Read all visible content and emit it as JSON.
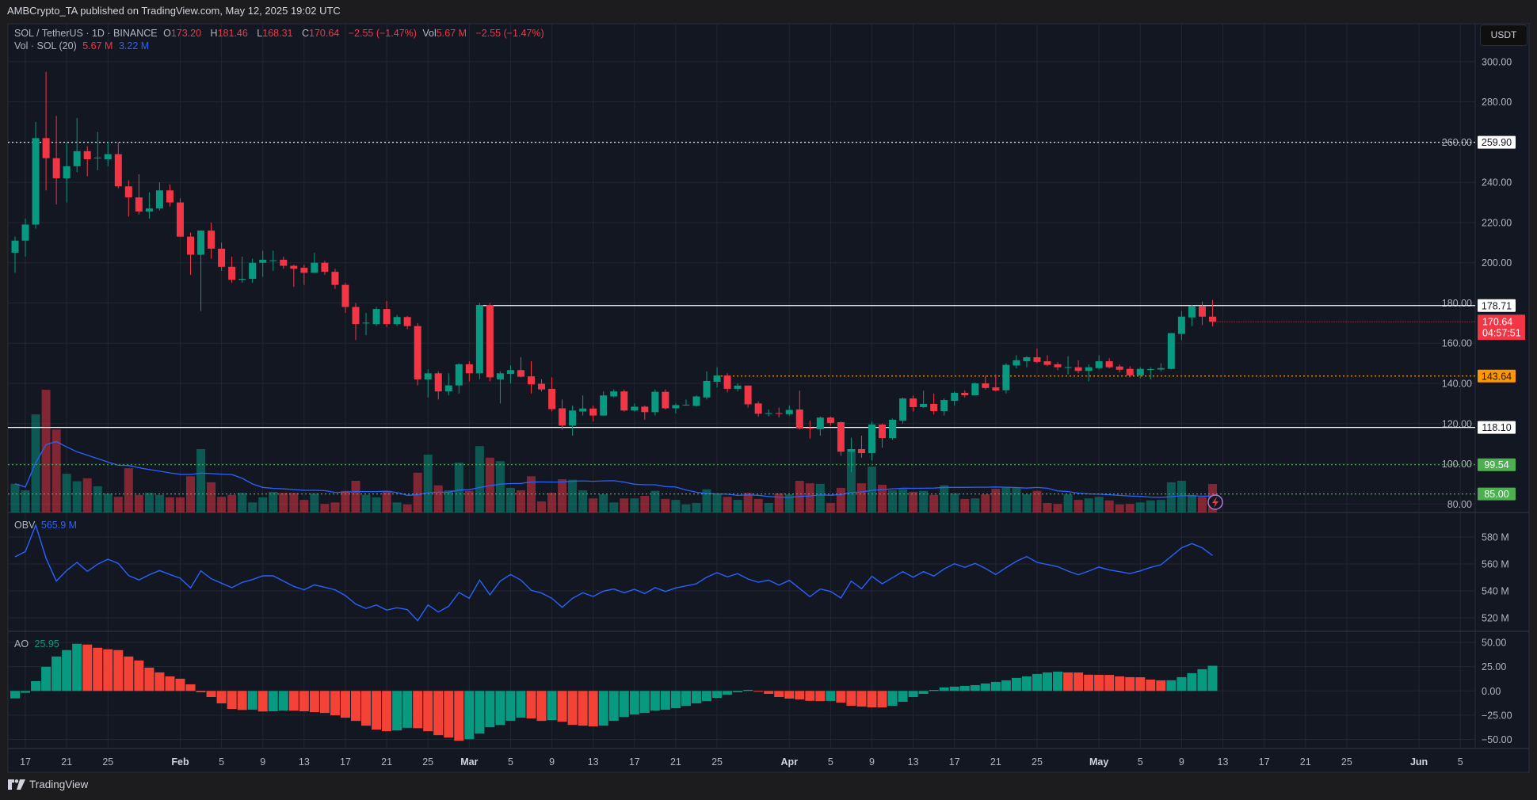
{
  "header": {
    "published": "AMBCrypto_TA published on TradingView.com, May 12, 2025 19:02 UTC"
  },
  "legend": {
    "symbol": "SOL / TetherUS · 1D · BINANCE",
    "o_label": "O",
    "o": "173.20",
    "h_label": "H",
    "h": "181.46",
    "l_label": "L",
    "l": "168.31",
    "c_label": "C",
    "c": "170.64",
    "change": "−2.55 (−1.47%)",
    "vol_label": "Vol",
    "vol": "5.67 M",
    "vol_change": "−2.55 (−1.47%)",
    "vol_indicator": "Vol · SOL (20)",
    "vol_value": "5.67 M",
    "vol_ma_value": "3.22 M"
  },
  "obv_legend": {
    "label": "OBV",
    "value": "565.9 M"
  },
  "ao_legend": {
    "label": "AO",
    "value": "25.95"
  },
  "currency_button": "USDT",
  "footer": {
    "brand": "TradingView"
  },
  "colors": {
    "up": "#089981",
    "down": "#f23645",
    "line": "#2962ff",
    "background": "#131722",
    "grid": "#222631",
    "level_orange": "#ff9800",
    "level_green": "#4caf50"
  },
  "icons": {
    "alert": "lightning-icon",
    "logo": "tradingview-logo"
  },
  "chart_data": {
    "type": "candlestick",
    "symbol": "SOL / TetherUS",
    "interval": "1D",
    "price_axis": {
      "ticks": [
        "300.00",
        "280.00",
        "260.00",
        "240.00",
        "220.00",
        "200.00",
        "180.00",
        "160.00",
        "140.00",
        "120.00",
        "100.00",
        "80.00"
      ],
      "range": [
        80,
        300
      ]
    },
    "obv_axis": {
      "ticks": [
        "580 M",
        "560 M",
        "540 M",
        "520 M"
      ],
      "range": [
        520,
        580
      ]
    },
    "ao_axis": {
      "ticks": [
        "50.00",
        "25.00",
        "0.00",
        "−25.00",
        "−50.00"
      ],
      "range": [
        -50,
        50
      ]
    },
    "x_ticks": [
      {
        "label": "17",
        "date": "2025-01-17"
      },
      {
        "label": "21",
        "date": "2025-01-21"
      },
      {
        "label": "25",
        "date": "2025-01-25"
      },
      {
        "label": "Feb",
        "date": "2025-02-01",
        "major": true
      },
      {
        "label": "5",
        "date": "2025-02-05"
      },
      {
        "label": "9",
        "date": "2025-02-09"
      },
      {
        "label": "13",
        "date": "2025-02-13"
      },
      {
        "label": "17",
        "date": "2025-02-17"
      },
      {
        "label": "21",
        "date": "2025-02-21"
      },
      {
        "label": "25",
        "date": "2025-02-25"
      },
      {
        "label": "Mar",
        "date": "2025-03-01",
        "major": true
      },
      {
        "label": "5",
        "date": "2025-03-05"
      },
      {
        "label": "9",
        "date": "2025-03-09"
      },
      {
        "label": "13",
        "date": "2025-03-13"
      },
      {
        "label": "17",
        "date": "2025-03-17"
      },
      {
        "label": "21",
        "date": "2025-03-21"
      },
      {
        "label": "25",
        "date": "2025-03-25"
      },
      {
        "label": "Apr",
        "date": "2025-04-01",
        "major": true
      },
      {
        "label": "5",
        "date": "2025-04-05"
      },
      {
        "label": "9",
        "date": "2025-04-09"
      },
      {
        "label": "13",
        "date": "2025-04-13"
      },
      {
        "label": "17",
        "date": "2025-04-17"
      },
      {
        "label": "21",
        "date": "2025-04-21"
      },
      {
        "label": "25",
        "date": "2025-04-25"
      },
      {
        "label": "May",
        "date": "2025-05-01",
        "major": true
      },
      {
        "label": "5",
        "date": "2025-05-05"
      },
      {
        "label": "9",
        "date": "2025-05-09"
      },
      {
        "label": "13",
        "date": "2025-05-13"
      },
      {
        "label": "17",
        "date": "2025-05-17"
      },
      {
        "label": "21",
        "date": "2025-05-21"
      },
      {
        "label": "25",
        "date": "2025-05-25"
      },
      {
        "label": "Jun",
        "date": "2025-06-01",
        "major": true
      },
      {
        "label": "5",
        "date": "2025-06-05"
      }
    ],
    "levels": [
      {
        "value": 259.9,
        "label": "259.90",
        "style": "dotted",
        "color": "#ffffff",
        "label_bg": "#ffffff",
        "label_color": "#131722"
      },
      {
        "value": 178.71,
        "label": "178.71",
        "style": "solid",
        "color": "#ffffff",
        "label_bg": "#ffffff",
        "label_color": "#131722",
        "from_date": "2025-03-02"
      },
      {
        "value": 143.64,
        "label": "143.64",
        "style": "dotted",
        "color": "#ff9800",
        "label_bg": "#ff9800",
        "label_color": "#131722",
        "from_date": "2025-03-25"
      },
      {
        "value": 118.1,
        "label": "118.10",
        "style": "solid",
        "color": "#ffffff",
        "label_bg": "#ffffff",
        "label_color": "#131722"
      },
      {
        "value": 99.54,
        "label": "99.54",
        "style": "dotted",
        "color": "#4caf50",
        "label_bg": "#4caf50",
        "label_color": "#ffffff"
      },
      {
        "value": 85.0,
        "label": "85.00",
        "style": "dotted",
        "color": "#4caf50",
        "label_bg": "#4caf50",
        "label_color": "#ffffff"
      }
    ],
    "last_price": {
      "value": 170.64,
      "label": "170.64",
      "countdown": "04:57:51"
    },
    "dates": [
      "2025-01-16",
      "2025-01-17",
      "2025-01-18",
      "2025-01-19",
      "2025-01-20",
      "2025-01-21",
      "2025-01-22",
      "2025-01-23",
      "2025-01-24",
      "2025-01-25",
      "2025-01-26",
      "2025-01-27",
      "2025-01-28",
      "2025-01-29",
      "2025-01-30",
      "2025-01-31",
      "2025-02-01",
      "2025-02-02",
      "2025-02-03",
      "2025-02-04",
      "2025-02-05",
      "2025-02-06",
      "2025-02-07",
      "2025-02-08",
      "2025-02-09",
      "2025-02-10",
      "2025-02-11",
      "2025-02-12",
      "2025-02-13",
      "2025-02-14",
      "2025-02-15",
      "2025-02-16",
      "2025-02-17",
      "2025-02-18",
      "2025-02-19",
      "2025-02-20",
      "2025-02-21",
      "2025-02-22",
      "2025-02-23",
      "2025-02-24",
      "2025-02-25",
      "2025-02-26",
      "2025-02-27",
      "2025-02-28",
      "2025-03-01",
      "2025-03-02",
      "2025-03-03",
      "2025-03-04",
      "2025-03-05",
      "2025-03-06",
      "2025-03-07",
      "2025-03-08",
      "2025-03-09",
      "2025-03-10",
      "2025-03-11",
      "2025-03-12",
      "2025-03-13",
      "2025-03-14",
      "2025-03-15",
      "2025-03-16",
      "2025-03-17",
      "2025-03-18",
      "2025-03-19",
      "2025-03-20",
      "2025-03-21",
      "2025-03-22",
      "2025-03-23",
      "2025-03-24",
      "2025-03-25",
      "2025-03-26",
      "2025-03-27",
      "2025-03-28",
      "2025-03-29",
      "2025-03-30",
      "2025-03-31",
      "2025-04-01",
      "2025-04-02",
      "2025-04-03",
      "2025-04-04",
      "2025-04-05",
      "2025-04-06",
      "2025-04-07",
      "2025-04-08",
      "2025-04-09",
      "2025-04-10",
      "2025-04-11",
      "2025-04-12",
      "2025-04-13",
      "2025-04-14",
      "2025-04-15",
      "2025-04-16",
      "2025-04-17",
      "2025-04-18",
      "2025-04-19",
      "2025-04-20",
      "2025-04-21",
      "2025-04-22",
      "2025-04-23",
      "2025-04-24",
      "2025-04-25",
      "2025-04-26",
      "2025-04-27",
      "2025-04-28",
      "2025-04-29",
      "2025-04-30",
      "2025-05-01",
      "2025-05-02",
      "2025-05-03",
      "2025-05-04",
      "2025-05-05",
      "2025-05-06",
      "2025-05-07",
      "2025-05-08",
      "2025-05-09",
      "2025-05-10",
      "2025-05-11",
      "2025-05-12"
    ],
    "open": [
      205,
      211,
      219,
      262,
      252,
      242,
      248,
      255.5,
      252,
      251.5,
      254,
      238,
      232.5,
      225.5,
      227,
      236,
      230,
      213,
      204,
      216,
      207,
      198,
      191.5,
      192,
      200,
      201,
      201.5,
      198.5,
      197.5,
      195,
      200,
      195.5,
      189,
      178,
      170,
      169.5,
      177,
      169.5,
      173,
      168.5,
      142,
      145,
      136,
      139,
      149.5,
      145,
      179,
      142,
      144.7,
      146.6,
      143.5,
      139.8,
      137.3,
      127.6,
      119,
      126,
      127.5,
      124,
      133.5,
      136,
      126.5,
      128.4,
      125.7,
      135.8,
      127.6,
      129.2,
      128.8,
      133,
      140.8,
      143.9,
      137.3,
      138.9,
      130,
      125,
      125.2,
      124.7,
      127,
      117.9,
      117.2,
      123,
      120.7,
      106,
      107.3,
      105.3,
      119.5,
      112.8,
      121.5,
      132.5,
      128.2,
      129.8,
      126.2,
      131.3,
      135.3,
      134.1,
      140,
      138,
      136.6,
      148.9,
      151,
      153,
      151,
      149.5,
      148,
      148,
      146.2,
      147.6,
      151,
      148.4,
      147.2,
      144,
      147,
      146.9,
      147.2,
      164.6,
      172.8,
      178.3,
      173.2
    ],
    "high": [
      213,
      222,
      270,
      295,
      273,
      260,
      272,
      258,
      265,
      260,
      260,
      241,
      244,
      235,
      240,
      239,
      232,
      215,
      216,
      220,
      210,
      203,
      203,
      202,
      206,
      206,
      203,
      199,
      199,
      205,
      201,
      197,
      190,
      180,
      175,
      178,
      181,
      174,
      173.5,
      170,
      147,
      146,
      145,
      150,
      151,
      180,
      180,
      146,
      149,
      153,
      151,
      142,
      143,
      132,
      129,
      134,
      129,
      136,
      137,
      137,
      130,
      129,
      137,
      137,
      130,
      132,
      134,
      146,
      148,
      145,
      140,
      139,
      131,
      127,
      128,
      129,
      136.4,
      121.5,
      123.5,
      123.5,
      121,
      113,
      114,
      121,
      120,
      122.5,
      133,
      134,
      136.4,
      135,
      132.5,
      136,
      136.5,
      140.5,
      144,
      144.4,
      150,
      154,
      153.5,
      157.3,
      154,
      150.5,
      153.5,
      151.5,
      149.5,
      154,
      152.5,
      149.5,
      148.5,
      148,
      148,
      150,
      165,
      176,
      179,
      180.7,
      181.46
    ],
    "low": [
      195,
      203,
      217,
      236,
      229,
      230,
      245,
      243,
      246,
      248,
      237,
      223,
      224,
      222,
      226,
      228,
      213,
      194,
      176,
      202,
      196,
      190,
      190,
      190,
      193,
      196,
      197,
      188,
      189,
      195,
      194,
      187,
      175,
      161.5,
      164,
      168.5,
      168,
      168.5,
      167,
      139,
      133,
      132,
      134,
      135,
      141,
      142,
      141,
      130,
      140,
      143,
      135,
      136,
      126,
      117,
      114,
      124,
      121,
      124,
      133,
      126,
      126,
      122,
      124,
      127,
      125,
      129,
      128.5,
      132,
      138,
      135.5,
      136,
      128,
      123.5,
      123.5,
      123,
      124,
      117,
      112.5,
      114,
      119,
      104,
      95.8,
      103,
      101.7,
      108,
      112,
      120,
      126,
      127.8,
      124.5,
      124,
      129,
      133,
      134,
      137,
      136,
      135,
      147.5,
      148,
      150,
      148.5,
      146.5,
      144.5,
      145,
      141,
      147,
      147.5,
      145.5,
      143,
      142.5,
      142,
      146,
      147,
      161.5,
      168.5,
      169,
      168.31
    ],
    "close": [
      211,
      219,
      262,
      252,
      242,
      248,
      255.5,
      251.5,
      252.3,
      254,
      238,
      232.5,
      225.5,
      227,
      236,
      230,
      213,
      204,
      216,
      207,
      198,
      191.5,
      192,
      200,
      201.5,
      201.2,
      198.5,
      197,
      195,
      200,
      195.5,
      189,
      178,
      169.5,
      170.2,
      177,
      169.5,
      173,
      168.5,
      142,
      145,
      136,
      139,
      149.5,
      145,
      179,
      143,
      145,
      146.6,
      143.3,
      139.5,
      137,
      127.2,
      119,
      126.5,
      127.5,
      124,
      134,
      136,
      126.5,
      128.4,
      125.7,
      135.8,
      127.6,
      129.2,
      129.4,
      133.5,
      141.2,
      143.9,
      137.3,
      138.9,
      129.6,
      124.9,
      125.2,
      125,
      126.8,
      117.6,
      117.7,
      123,
      120.3,
      106,
      107.3,
      105.3,
      119.5,
      112.8,
      121.9,
      132.5,
      128.2,
      129.8,
      126.2,
      131.7,
      135.3,
      134.1,
      140,
      137.7,
      136.5,
      149.2,
      151.5,
      153,
      150.7,
      149.2,
      148,
      148.1,
      146.2,
      148,
      151,
      148,
      146.8,
      144,
      147.2,
      147.1,
      147.6,
      165,
      173.2,
      178.3,
      173.2,
      170.64
    ],
    "volume_millions": [
      5.7,
      4.4,
      19.5,
      24.4,
      16.5,
      7.7,
      6.2,
      6.8,
      5.2,
      3.8,
      3.1,
      8.8,
      3.5,
      3.9,
      3.5,
      3.0,
      3.0,
      7.2,
      12.6,
      6.0,
      3.1,
      3.5,
      3.9,
      2.0,
      3.0,
      4.1,
      3.9,
      3.9,
      2.5,
      3.8,
      1.7,
      2.0,
      4.3,
      6.3,
      3.5,
      3.0,
      4.3,
      2.0,
      1.6,
      7.9,
      11.5,
      5.4,
      4.4,
      9.9,
      4.3,
      13.2,
      10.9,
      10.2,
      4.9,
      4.4,
      7.2,
      2.2,
      3.9,
      6.6,
      6.5,
      4.4,
      2.8,
      3.6,
      2.0,
      2.8,
      2.8,
      3.3,
      4.3,
      2.7,
      2.5,
      1.6,
      1.9,
      4.6,
      3.8,
      3.1,
      2.5,
      3.9,
      2.7,
      1.9,
      3.8,
      3.6,
      6.3,
      5.8,
      5.7,
      1.9,
      4.9,
      12.6,
      5.8,
      9.1,
      5.5,
      4.4,
      4.6,
      4.1,
      4.3,
      3.5,
      5.4,
      3.8,
      2.7,
      2.8,
      3.6,
      4.7,
      4.9,
      4.9,
      3.6,
      4.3,
      1.9,
      1.7,
      3.6,
      2.5,
      2.8,
      3.1,
      2.4,
      1.6,
      1.7,
      2.0,
      2.4,
      2.5,
      6.0,
      6.3,
      3.5,
      3.1,
      5.67
    ],
    "volume_ma_period": 20,
    "obv_millions": [
      565.3,
      569.2,
      588.8,
      564.3,
      547.3,
      555.1,
      561.2,
      554.5,
      559.8,
      563.5,
      560.4,
      551.4,
      548.1,
      552.0,
      555.1,
      552.2,
      549.4,
      542.2,
      554.9,
      549.0,
      545.7,
      542.4,
      546.3,
      548.4,
      551.2,
      551.2,
      547.3,
      543.3,
      540.8,
      544.5,
      542.7,
      540.8,
      536.5,
      530.2,
      526.9,
      529.6,
      525.7,
      527.5,
      526.1,
      517.9,
      529.6,
      524.3,
      528.6,
      538.8,
      534.5,
      548.0,
      537.1,
      547.3,
      552.2,
      548.0,
      540.4,
      538.4,
      534.5,
      527.8,
      534.5,
      538.6,
      535.9,
      539.8,
      541.4,
      538.6,
      541.2,
      538.0,
      542.4,
      539.6,
      542.2,
      543.7,
      545.3,
      550.2,
      553.5,
      550.4,
      552.8,
      548.8,
      546.5,
      548.0,
      544.3,
      547.8,
      541.8,
      535.7,
      541.4,
      539.6,
      534.7,
      547.3,
      541.6,
      550.8,
      545.3,
      549.8,
      554.3,
      550.2,
      554.3,
      551.0,
      556.3,
      560.2,
      557.5,
      560.4,
      556.7,
      552.2,
      557.3,
      562.0,
      565.5,
      561.2,
      559.6,
      558.0,
      554.7,
      552.0,
      554.7,
      557.7,
      555.5,
      554.3,
      552.8,
      554.9,
      557.5,
      559.4,
      565.7,
      572.0,
      575.1,
      572.0,
      566.3
    ],
    "ao": [
      -7.7,
      -1.9,
      10.1,
      24.9,
      35.5,
      42.1,
      48.6,
      47.8,
      44.5,
      42.9,
      42.1,
      35.5,
      31.4,
      24.0,
      19.1,
      15.0,
      12.6,
      6.8,
      -1.4,
      -6.3,
      -12.8,
      -18.6,
      -19.6,
      -19.3,
      -21.2,
      -21.0,
      -20.2,
      -20.4,
      -21.0,
      -21.9,
      -22.7,
      -25.1,
      -27.6,
      -30.9,
      -35.8,
      -39.9,
      -41.5,
      -40.7,
      -38.0,
      -38.4,
      -41.5,
      -45.6,
      -48.1,
      -51.4,
      -49.7,
      -44.0,
      -37.4,
      -35.0,
      -30.9,
      -27.6,
      -28.4,
      -30.9,
      -30.1,
      -31.7,
      -35.0,
      -35.8,
      -36.6,
      -35.8,
      -30.9,
      -26.8,
      -24.3,
      -22.7,
      -20.2,
      -19.4,
      -17.8,
      -15.3,
      -12.8,
      -10.4,
      -7.1,
      -3.8,
      -1.4,
      1.1,
      -0.5,
      -3.0,
      -6.3,
      -7.9,
      -8.7,
      -10.2,
      -10.5,
      -10.3,
      -12.0,
      -15.3,
      -16.1,
      -16.9,
      -17.0,
      -15.3,
      -11.2,
      -6.3,
      -3.0,
      1.1,
      3.6,
      4.4,
      5.2,
      6.0,
      7.7,
      9.3,
      10.9,
      13.4,
      15.0,
      17.5,
      19.1,
      19.9,
      19.1,
      19.0,
      16.7,
      16.6,
      16.5,
      15.0,
      14.2,
      14.1,
      11.7,
      10.9,
      11.0,
      14.2,
      18.3,
      22.4,
      25.95
    ]
  }
}
